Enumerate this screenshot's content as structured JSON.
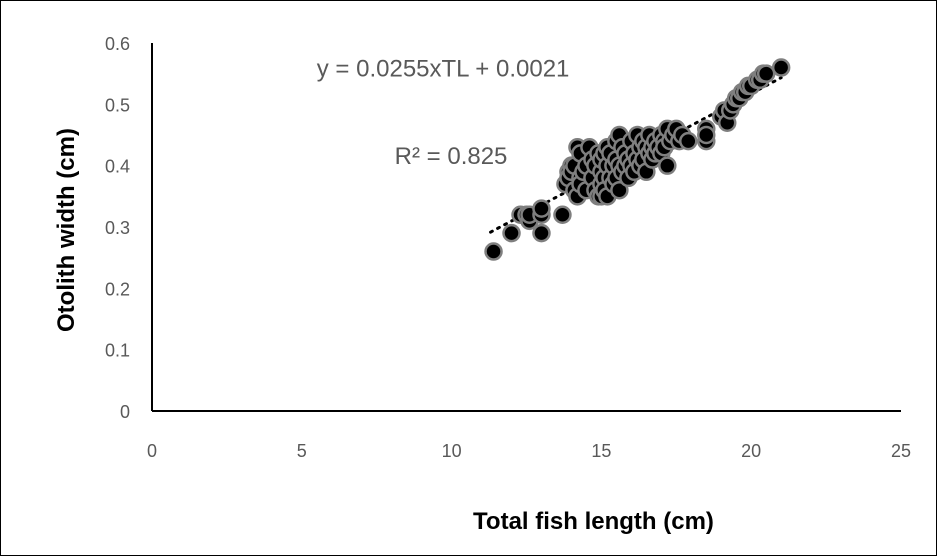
{
  "chart_data": {
    "type": "scatter",
    "title": "",
    "xlabel": "Total fish length (cm)",
    "ylabel": "Otolith width (cm)",
    "xlim": [
      0,
      25
    ],
    "ylim": [
      0,
      0.6
    ],
    "xticks": [
      "0",
      "5",
      "10",
      "15",
      "20",
      "25"
    ],
    "yticks": [
      "0",
      "0.1",
      "0.2",
      "0.3",
      "0.4",
      "0.5",
      "0.6"
    ],
    "grid": false,
    "legend": "none",
    "marker_color": "#000000",
    "marker_edge_color": "#7f7f7f",
    "trendline": {
      "type": "linear",
      "style": "dotted",
      "color": "#000000",
      "x_range": [
        11.3,
        21.0
      ]
    },
    "annotations": [
      {
        "text": "y = 0.0255xTL + 0.0021",
        "x": 5.5,
        "y": 0.545
      },
      {
        "text": "R² = 0.825",
        "x": 8.1,
        "y": 0.403
      }
    ],
    "series": [
      {
        "x": [
          11.4,
          12.0,
          12.3,
          12.5,
          12.6,
          12.6,
          13.0,
          13.0,
          13.0,
          13.7,
          13.8,
          13.9,
          13.9,
          14.0,
          14.0,
          14.1,
          14.1,
          14.2,
          14.2,
          14.3,
          14.3,
          14.3,
          14.4,
          14.5,
          14.5,
          14.6,
          14.7,
          14.7,
          14.8,
          14.8,
          14.9,
          14.9,
          15.0,
          15.0,
          15.0,
          15.0,
          15.1,
          15.1,
          15.1,
          15.2,
          15.2,
          15.2,
          15.3,
          15.3,
          15.4,
          15.4,
          15.5,
          15.5,
          15.5,
          15.6,
          15.6,
          15.6,
          15.7,
          15.7,
          15.8,
          15.8,
          15.9,
          15.9,
          16.0,
          16.0,
          16.1,
          16.1,
          16.2,
          16.2,
          16.3,
          16.3,
          16.4,
          16.4,
          16.5,
          16.5,
          16.6,
          16.6,
          16.7,
          16.7,
          16.8,
          16.8,
          16.9,
          17.0,
          17.0,
          17.1,
          17.1,
          17.2,
          17.2,
          17.3,
          17.4,
          17.5,
          17.6,
          17.7,
          17.9,
          18.5,
          18.5,
          18.5,
          19.0,
          19.1,
          19.2,
          19.3,
          19.4,
          19.5,
          19.6,
          19.7,
          19.8,
          19.9,
          20.0,
          20.2,
          20.3,
          20.4,
          20.5,
          21.0
        ],
        "y": [
          0.26,
          0.29,
          0.32,
          0.32,
          0.31,
          0.32,
          0.29,
          0.32,
          0.33,
          0.32,
          0.37,
          0.39,
          0.38,
          0.4,
          0.39,
          0.36,
          0.4,
          0.35,
          0.43,
          0.38,
          0.37,
          0.42,
          0.39,
          0.36,
          0.4,
          0.43,
          0.41,
          0.38,
          0.36,
          0.4,
          0.35,
          0.42,
          0.39,
          0.37,
          0.35,
          0.41,
          0.38,
          0.36,
          0.42,
          0.4,
          0.35,
          0.43,
          0.38,
          0.42,
          0.4,
          0.37,
          0.44,
          0.41,
          0.38,
          0.45,
          0.4,
          0.36,
          0.43,
          0.39,
          0.42,
          0.4,
          0.41,
          0.38,
          0.44,
          0.4,
          0.42,
          0.39,
          0.45,
          0.41,
          0.43,
          0.4,
          0.44,
          0.41,
          0.43,
          0.39,
          0.45,
          0.42,
          0.43,
          0.41,
          0.44,
          0.42,
          0.43,
          0.45,
          0.42,
          0.44,
          0.43,
          0.46,
          0.4,
          0.44,
          0.45,
          0.46,
          0.44,
          0.45,
          0.44,
          0.44,
          0.46,
          0.45,
          0.48,
          0.49,
          0.47,
          0.49,
          0.5,
          0.51,
          0.51,
          0.52,
          0.52,
          0.53,
          0.53,
          0.54,
          0.54,
          0.55,
          0.55,
          0.56
        ]
      }
    ]
  }
}
